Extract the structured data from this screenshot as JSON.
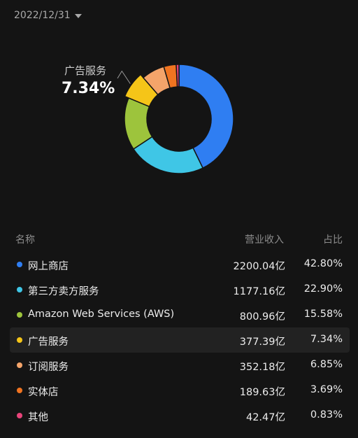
{
  "date_selector": {
    "value": "2022/12/31"
  },
  "callout": {
    "label": "广告服务",
    "value": "7.34%"
  },
  "table": {
    "headers": {
      "name": "名称",
      "revenue": "营业收入",
      "share": "占比"
    }
  },
  "chart_data": {
    "type": "pie",
    "donut": true,
    "highlighted": "广告服务",
    "slices": [
      {
        "name": "网上商店",
        "revenue": "2200.04亿",
        "value": 2200.04,
        "share": "42.80%",
        "color": "#2f7ef2"
      },
      {
        "name": "第三方卖方服务",
        "revenue": "1177.16亿",
        "value": 1177.16,
        "share": "22.90%",
        "color": "#3fc6e6"
      },
      {
        "name": "Amazon Web Services (AWS)",
        "revenue": "800.96亿",
        "value": 800.96,
        "share": "15.58%",
        "color": "#9dc43c"
      },
      {
        "name": "广告服务",
        "revenue": "377.39亿",
        "value": 377.39,
        "share": "7.34%",
        "color": "#f5c518"
      },
      {
        "name": "订阅服务",
        "revenue": "352.18亿",
        "value": 352.18,
        "share": "6.85%",
        "color": "#f4a46a"
      },
      {
        "name": "实体店",
        "revenue": "189.63亿",
        "value": 189.63,
        "share": "3.69%",
        "color": "#f07421"
      },
      {
        "name": "其他",
        "revenue": "42.47亿",
        "value": 42.47,
        "share": "0.83%",
        "color": "#e8447a"
      }
    ]
  }
}
